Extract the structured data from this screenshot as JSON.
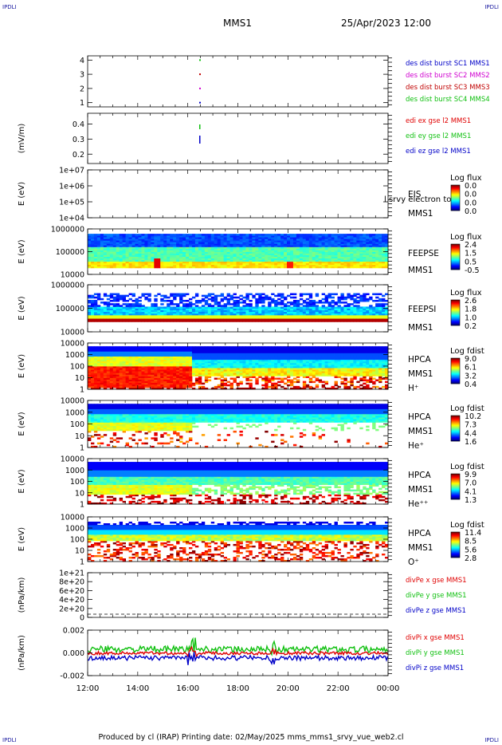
{
  "corners": {
    "tl": "IPDLI",
    "tr": "IPDLI",
    "bl": "IPDLI",
    "br": "IPDLI"
  },
  "header": {
    "title": "MMS1",
    "datetime": "25/Apr/2023 12:00"
  },
  "footer": {
    "text": "Produced by cl (IRAP)    Printing date: 02/May/2025    mms_mms1_srvy_vue_web2.cl"
  },
  "colors": {
    "red": "#e00000",
    "green": "#10c010",
    "blue": "#0000c8",
    "magenta": "#d000d0",
    "darkred": "#c00000"
  },
  "chart_data": {
    "type": "heatmap",
    "x_ticks": [
      "12:00",
      "14:00",
      "16:00",
      "18:00",
      "20:00",
      "22:00",
      "00:00"
    ],
    "xlim": [
      "12:00",
      "00:00"
    ],
    "panels": [
      {
        "kind": "line",
        "ylabel": "",
        "yticks": [
          "4",
          "3",
          "2",
          "1"
        ],
        "legend": [
          {
            "text": "des dist burst SC1 MMS1",
            "color": "#0000c8"
          },
          {
            "text": "des dist burst SC2 MMS2",
            "color": "#d000d0"
          },
          {
            "text": "des dist burst SC3 MMS3",
            "color": "#c00000"
          },
          {
            "text": "des dist burst SC4 MMS4",
            "color": "#10c010"
          }
        ]
      },
      {
        "kind": "line",
        "ylabel": "(mV/m)",
        "yticks": [
          "0.4",
          "0.3",
          "0.2"
        ],
        "legend": [
          {
            "text": "edi ex gse l2 MMS1",
            "color": "#e00000"
          },
          {
            "text": "edi ey gse l2 MMS1",
            "color": "#10c010"
          },
          {
            "text": "edi ez gse l2 MMS1",
            "color": "#0000c8"
          }
        ]
      },
      {
        "kind": "spec",
        "ylabel": "E (eV)",
        "yticks": [
          "1e+07",
          "1e+06",
          "1e+05",
          "1e+04"
        ],
        "label": [
          "EIS",
          "MMS1"
        ],
        "extra": "l srvy electron to",
        "cb_title": "Log flux",
        "cb_vals": [
          "0.0",
          "0.0",
          "0.0",
          "0.0"
        ]
      },
      {
        "kind": "spec",
        "ylabel": "E (eV)",
        "yticks": [
          "1000000",
          "100000",
          "10000"
        ],
        "label": [
          "FEEPSE",
          "MMS1"
        ],
        "cb_title": "Log flux",
        "cb_vals": [
          "2.4",
          "1.5",
          "0.5",
          "-0.5"
        ]
      },
      {
        "kind": "spec",
        "ylabel": "E (eV)",
        "yticks": [
          "1000000",
          "100000",
          "10000"
        ],
        "label": [
          "FEEPSI",
          "MMS1"
        ],
        "cb_title": "Log flux",
        "cb_vals": [
          "2.6",
          "1.8",
          "1.0",
          "0.2"
        ]
      },
      {
        "kind": "spec",
        "ylabel": "E (eV)",
        "yticks": [
          "10000",
          "1000",
          "100",
          "10",
          "1"
        ],
        "label": [
          "HPCA",
          "MMS1",
          "H⁺"
        ],
        "cb_title": "Log fdist",
        "cb_vals": [
          "9.0",
          "6.1",
          "3.2",
          "0.4"
        ]
      },
      {
        "kind": "spec",
        "ylabel": "E (eV)",
        "yticks": [
          "10000",
          "1000",
          "100",
          "10",
          "1"
        ],
        "label": [
          "HPCA",
          "MMS1",
          "He⁺"
        ],
        "cb_title": "Log fdist",
        "cb_vals": [
          "10.2",
          "7.3",
          "4.4",
          "1.6"
        ]
      },
      {
        "kind": "spec",
        "ylabel": "E (eV)",
        "yticks": [
          "10000",
          "1000",
          "100",
          "10",
          "1"
        ],
        "label": [
          "HPCA",
          "MMS1",
          "He⁺⁺"
        ],
        "cb_title": "Log fdist",
        "cb_vals": [
          "9.9",
          "7.0",
          "4.1",
          "1.3"
        ]
      },
      {
        "kind": "spec",
        "ylabel": "E (eV)",
        "yticks": [
          "10000",
          "1000",
          "100",
          "10",
          "1"
        ],
        "label": [
          "HPCA",
          "MMS1",
          "O⁺"
        ],
        "cb_title": "Log fdist",
        "cb_vals": [
          "11.4",
          "8.5",
          "5.6",
          "2.8"
        ]
      },
      {
        "kind": "line",
        "ylabel": "(nPa/km)",
        "yticks": [
          "1e+21",
          "8e+20",
          "6e+20",
          "4e+20",
          "2e+20",
          "0"
        ],
        "legend": [
          {
            "text": "divPe x gse MMS1",
            "color": "#e00000"
          },
          {
            "text": "divPe y gse MMS1",
            "color": "#10c010"
          },
          {
            "text": "divPe z gse MMS1",
            "color": "#0000c8"
          }
        ]
      },
      {
        "kind": "line",
        "ylabel": "(nPa/km)",
        "yticks": [
          "0.002",
          "0.000",
          "-0.002"
        ],
        "legend": [
          {
            "text": "divPi x gse MMS1",
            "color": "#e00000"
          },
          {
            "text": "divPi y gse MMS1",
            "color": "#10c010"
          },
          {
            "text": "divPi z gse MMS1",
            "color": "#0000c8"
          }
        ]
      }
    ]
  }
}
